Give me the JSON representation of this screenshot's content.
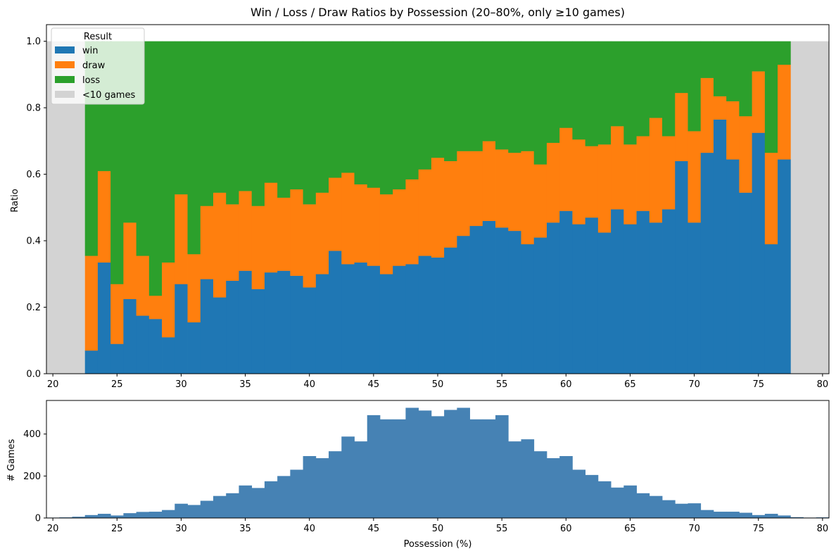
{
  "chart_data": [
    {
      "type": "bar",
      "stacked": true,
      "title": "Win / Loss / Draw Ratios by Possession (20–80%, only ≥10 games)",
      "xlabel": "",
      "ylabel": "Ratio",
      "xlim": [
        19.5,
        80.5
      ],
      "ylim": [
        0,
        1.05
      ],
      "xticks": [
        20,
        25,
        30,
        35,
        40,
        45,
        50,
        55,
        60,
        65,
        70,
        75,
        80
      ],
      "yticks": [
        0.0,
        0.2,
        0.4,
        0.6,
        0.8,
        1.0
      ],
      "ytick_labels": [
        "0.0",
        "0.2",
        "0.4",
        "0.6",
        "0.8",
        "1.0"
      ],
      "bin_centers": [
        23,
        24,
        25,
        26,
        27,
        28,
        29,
        30,
        31,
        32,
        33,
        34,
        35,
        36,
        37,
        38,
        39,
        40,
        41,
        42,
        43,
        44,
        45,
        46,
        47,
        48,
        49,
        50,
        51,
        52,
        53,
        54,
        55,
        56,
        57,
        58,
        59,
        60,
        61,
        62,
        63,
        64,
        65,
        66,
        67,
        68,
        69,
        70,
        71,
        72,
        73,
        74,
        75,
        76,
        77
      ],
      "bin_width": 1,
      "series": [
        {
          "name": "win",
          "color": "#1f77b4",
          "values": [
            0.07,
            0.335,
            0.09,
            0.225,
            0.175,
            0.165,
            0.11,
            0.27,
            0.155,
            0.285,
            0.23,
            0.28,
            0.31,
            0.255,
            0.305,
            0.31,
            0.295,
            0.26,
            0.3,
            0.37,
            0.33,
            0.335,
            0.325,
            0.3,
            0.325,
            0.33,
            0.355,
            0.35,
            0.38,
            0.415,
            0.445,
            0.46,
            0.44,
            0.43,
            0.39,
            0.41,
            0.455,
            0.49,
            0.45,
            0.47,
            0.425,
            0.495,
            0.45,
            0.49,
            0.455,
            0.495,
            0.64,
            0.455,
            0.665,
            0.765,
            0.645,
            0.545,
            0.725,
            0.39,
            0.645
          ]
        },
        {
          "name": "draw",
          "color": "#ff7f0e",
          "values": [
            0.285,
            0.275,
            0.18,
            0.23,
            0.18,
            0.07,
            0.225,
            0.27,
            0.205,
            0.22,
            0.315,
            0.23,
            0.24,
            0.25,
            0.27,
            0.22,
            0.26,
            0.25,
            0.245,
            0.22,
            0.275,
            0.235,
            0.235,
            0.24,
            0.23,
            0.255,
            0.26,
            0.3,
            0.26,
            0.255,
            0.225,
            0.24,
            0.235,
            0.235,
            0.28,
            0.22,
            0.24,
            0.25,
            0.255,
            0.215,
            0.265,
            0.25,
            0.24,
            0.225,
            0.315,
            0.22,
            0.205,
            0.275,
            0.225,
            0.07,
            0.175,
            0.23,
            0.185,
            0.275,
            0.285
          ]
        },
        {
          "name": "loss",
          "color": "#2ca02c",
          "values": [
            0.645,
            0.39,
            0.73,
            0.545,
            0.645,
            0.765,
            0.665,
            0.46,
            0.64,
            0.495,
            0.455,
            0.49,
            0.45,
            0.495,
            0.425,
            0.47,
            0.445,
            0.49,
            0.455,
            0.41,
            0.395,
            0.43,
            0.44,
            0.46,
            0.445,
            0.415,
            0.385,
            0.35,
            0.36,
            0.33,
            0.33,
            0.3,
            0.325,
            0.335,
            0.33,
            0.37,
            0.305,
            0.26,
            0.295,
            0.315,
            0.31,
            0.255,
            0.31,
            0.285,
            0.23,
            0.285,
            0.155,
            0.27,
            0.11,
            0.165,
            0.18,
            0.225,
            0.09,
            0.335,
            0.07
          ]
        }
      ],
      "insufficient_regions": {
        "name": "<10 games",
        "color": "#d3d3d3",
        "ranges": [
          [
            19.5,
            22.5
          ],
          [
            77.5,
            80.5
          ]
        ],
        "value": 1.0
      },
      "legend": {
        "title": "Result",
        "location": "upper-left",
        "entries": [
          "win",
          "draw",
          "loss",
          "<10 games"
        ]
      }
    },
    {
      "type": "bar",
      "title": "",
      "xlabel": "Possession (%)",
      "ylabel": "# Games",
      "xlim": [
        19.5,
        80.5
      ],
      "ylim": [
        0,
        560
      ],
      "xticks": [
        20,
        25,
        30,
        35,
        40,
        45,
        50,
        55,
        60,
        65,
        70,
        75,
        80
      ],
      "yticks": [
        0,
        200,
        400
      ],
      "color": "#4682b4",
      "bin_centers": [
        20,
        21,
        22,
        23,
        24,
        25,
        26,
        27,
        28,
        29,
        30,
        31,
        32,
        33,
        34,
        35,
        36,
        37,
        38,
        39,
        40,
        41,
        42,
        43,
        44,
        45,
        46,
        47,
        48,
        49,
        50,
        51,
        52,
        53,
        54,
        55,
        56,
        57,
        58,
        59,
        60,
        61,
        62,
        63,
        64,
        65,
        66,
        67,
        68,
        69,
        70,
        71,
        72,
        73,
        74,
        75,
        76,
        77,
        78,
        79,
        80
      ],
      "bin_width": 1,
      "values": [
        2,
        3,
        6,
        14,
        20,
        12,
        23,
        29,
        30,
        38,
        68,
        62,
        82,
        105,
        118,
        155,
        143,
        175,
        200,
        230,
        295,
        285,
        318,
        388,
        365,
        490,
        470,
        470,
        525,
        512,
        485,
        515,
        525,
        470,
        470,
        490,
        365,
        375,
        318,
        285,
        295,
        230,
        205,
        175,
        145,
        155,
        118,
        105,
        85,
        68,
        70,
        38,
        30,
        30,
        25,
        14,
        20,
        12,
        4,
        2,
        3
      ]
    }
  ]
}
